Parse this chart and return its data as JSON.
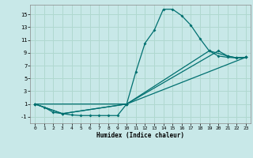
{
  "xlabel": "Humidex (Indice chaleur)",
  "background_color": "#c8e8e8",
  "grid_color": "#b0d8d0",
  "line_color": "#007070",
  "xlim": [
    -0.5,
    23.5
  ],
  "ylim": [
    -2.0,
    16.5
  ],
  "xticks": [
    0,
    1,
    2,
    3,
    4,
    5,
    6,
    7,
    8,
    9,
    10,
    11,
    12,
    13,
    14,
    15,
    16,
    17,
    18,
    19,
    20,
    21,
    22,
    23
  ],
  "yticks": [
    -1,
    1,
    3,
    5,
    7,
    9,
    11,
    13,
    15
  ],
  "lines": [
    {
      "x": [
        0,
        1,
        2,
        3,
        4,
        5,
        6,
        7,
        8,
        9,
        10,
        11,
        12,
        13,
        14,
        15,
        16,
        17,
        18,
        19,
        20,
        21,
        22,
        23
      ],
      "y": [
        1,
        0.5,
        -0.3,
        -0.5,
        -0.7,
        -0.8,
        -0.8,
        -0.8,
        -0.8,
        -0.8,
        1,
        6,
        10.5,
        12.5,
        15.8,
        15.8,
        14.8,
        13.3,
        11.2,
        9.3,
        8.5,
        8.3,
        8.2,
        8.3
      ]
    },
    {
      "x": [
        0,
        3,
        10,
        20,
        21,
        22,
        23
      ],
      "y": [
        1,
        -0.5,
        1,
        9.3,
        8.5,
        8.2,
        8.3
      ]
    },
    {
      "x": [
        0,
        3,
        10,
        19,
        21,
        22,
        23
      ],
      "y": [
        1,
        -0.5,
        1,
        9.3,
        8.5,
        8.2,
        8.3
      ]
    },
    {
      "x": [
        0,
        10,
        23
      ],
      "y": [
        1,
        1,
        8.3
      ]
    }
  ]
}
